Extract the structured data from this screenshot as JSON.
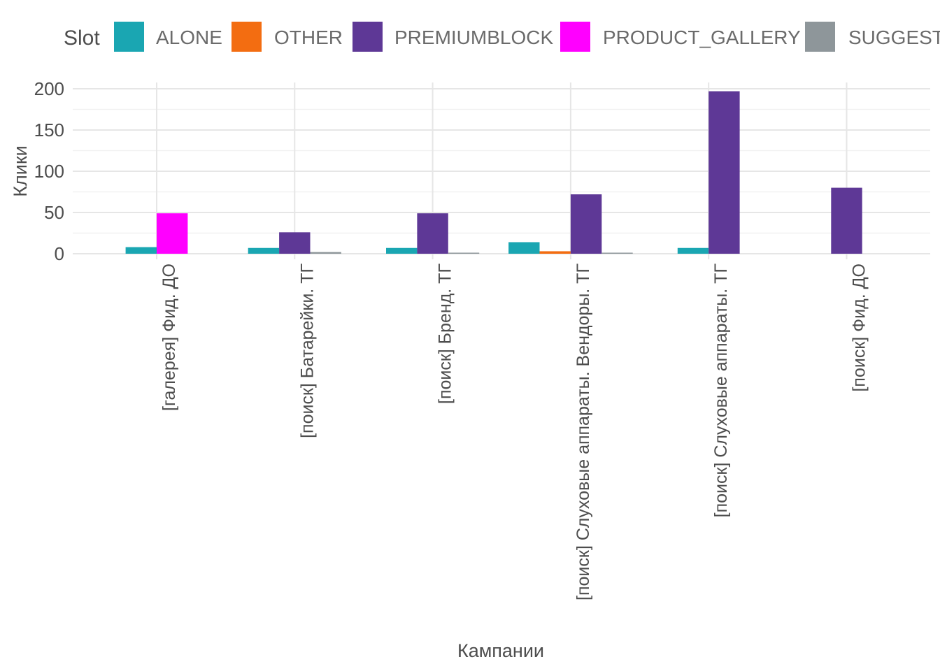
{
  "chart_data": {
    "type": "bar",
    "title": "",
    "xlabel": "Кампании",
    "ylabel": "Клики",
    "ylim": [
      0,
      200
    ],
    "yticks": [
      0,
      50,
      100,
      150,
      200
    ],
    "grid": true,
    "legend": {
      "title": "Slot",
      "position": "top"
    },
    "categories": [
      "[галерея] Фид. ДО",
      "[поиск] Батарейки. ТГ",
      "[поиск] Бренд. ТГ",
      "[поиск] Слуховые аппараты. Вендоры. ТГ",
      "[поиск] Слуховые аппараты. ТГ",
      "[поиск] Фид. ДО"
    ],
    "series": [
      {
        "name": "ALONE",
        "color": "#1AA6B2",
        "values": [
          8,
          7,
          7,
          14,
          7,
          null
        ]
      },
      {
        "name": "OTHER",
        "color": "#F36D11",
        "values": [
          null,
          null,
          null,
          3,
          null,
          null
        ]
      },
      {
        "name": "PREMIUMBLOCK",
        "color": "#5E3896",
        "values": [
          null,
          26,
          49,
          72,
          197,
          80
        ]
      },
      {
        "name": "PRODUCT_GALLERY",
        "color": "#FF00FF",
        "values": [
          49,
          null,
          null,
          null,
          null,
          null
        ]
      },
      {
        "name": "SUGGEST",
        "color": "#8E969A",
        "values": [
          null,
          2,
          1,
          1,
          null,
          null
        ]
      }
    ]
  }
}
